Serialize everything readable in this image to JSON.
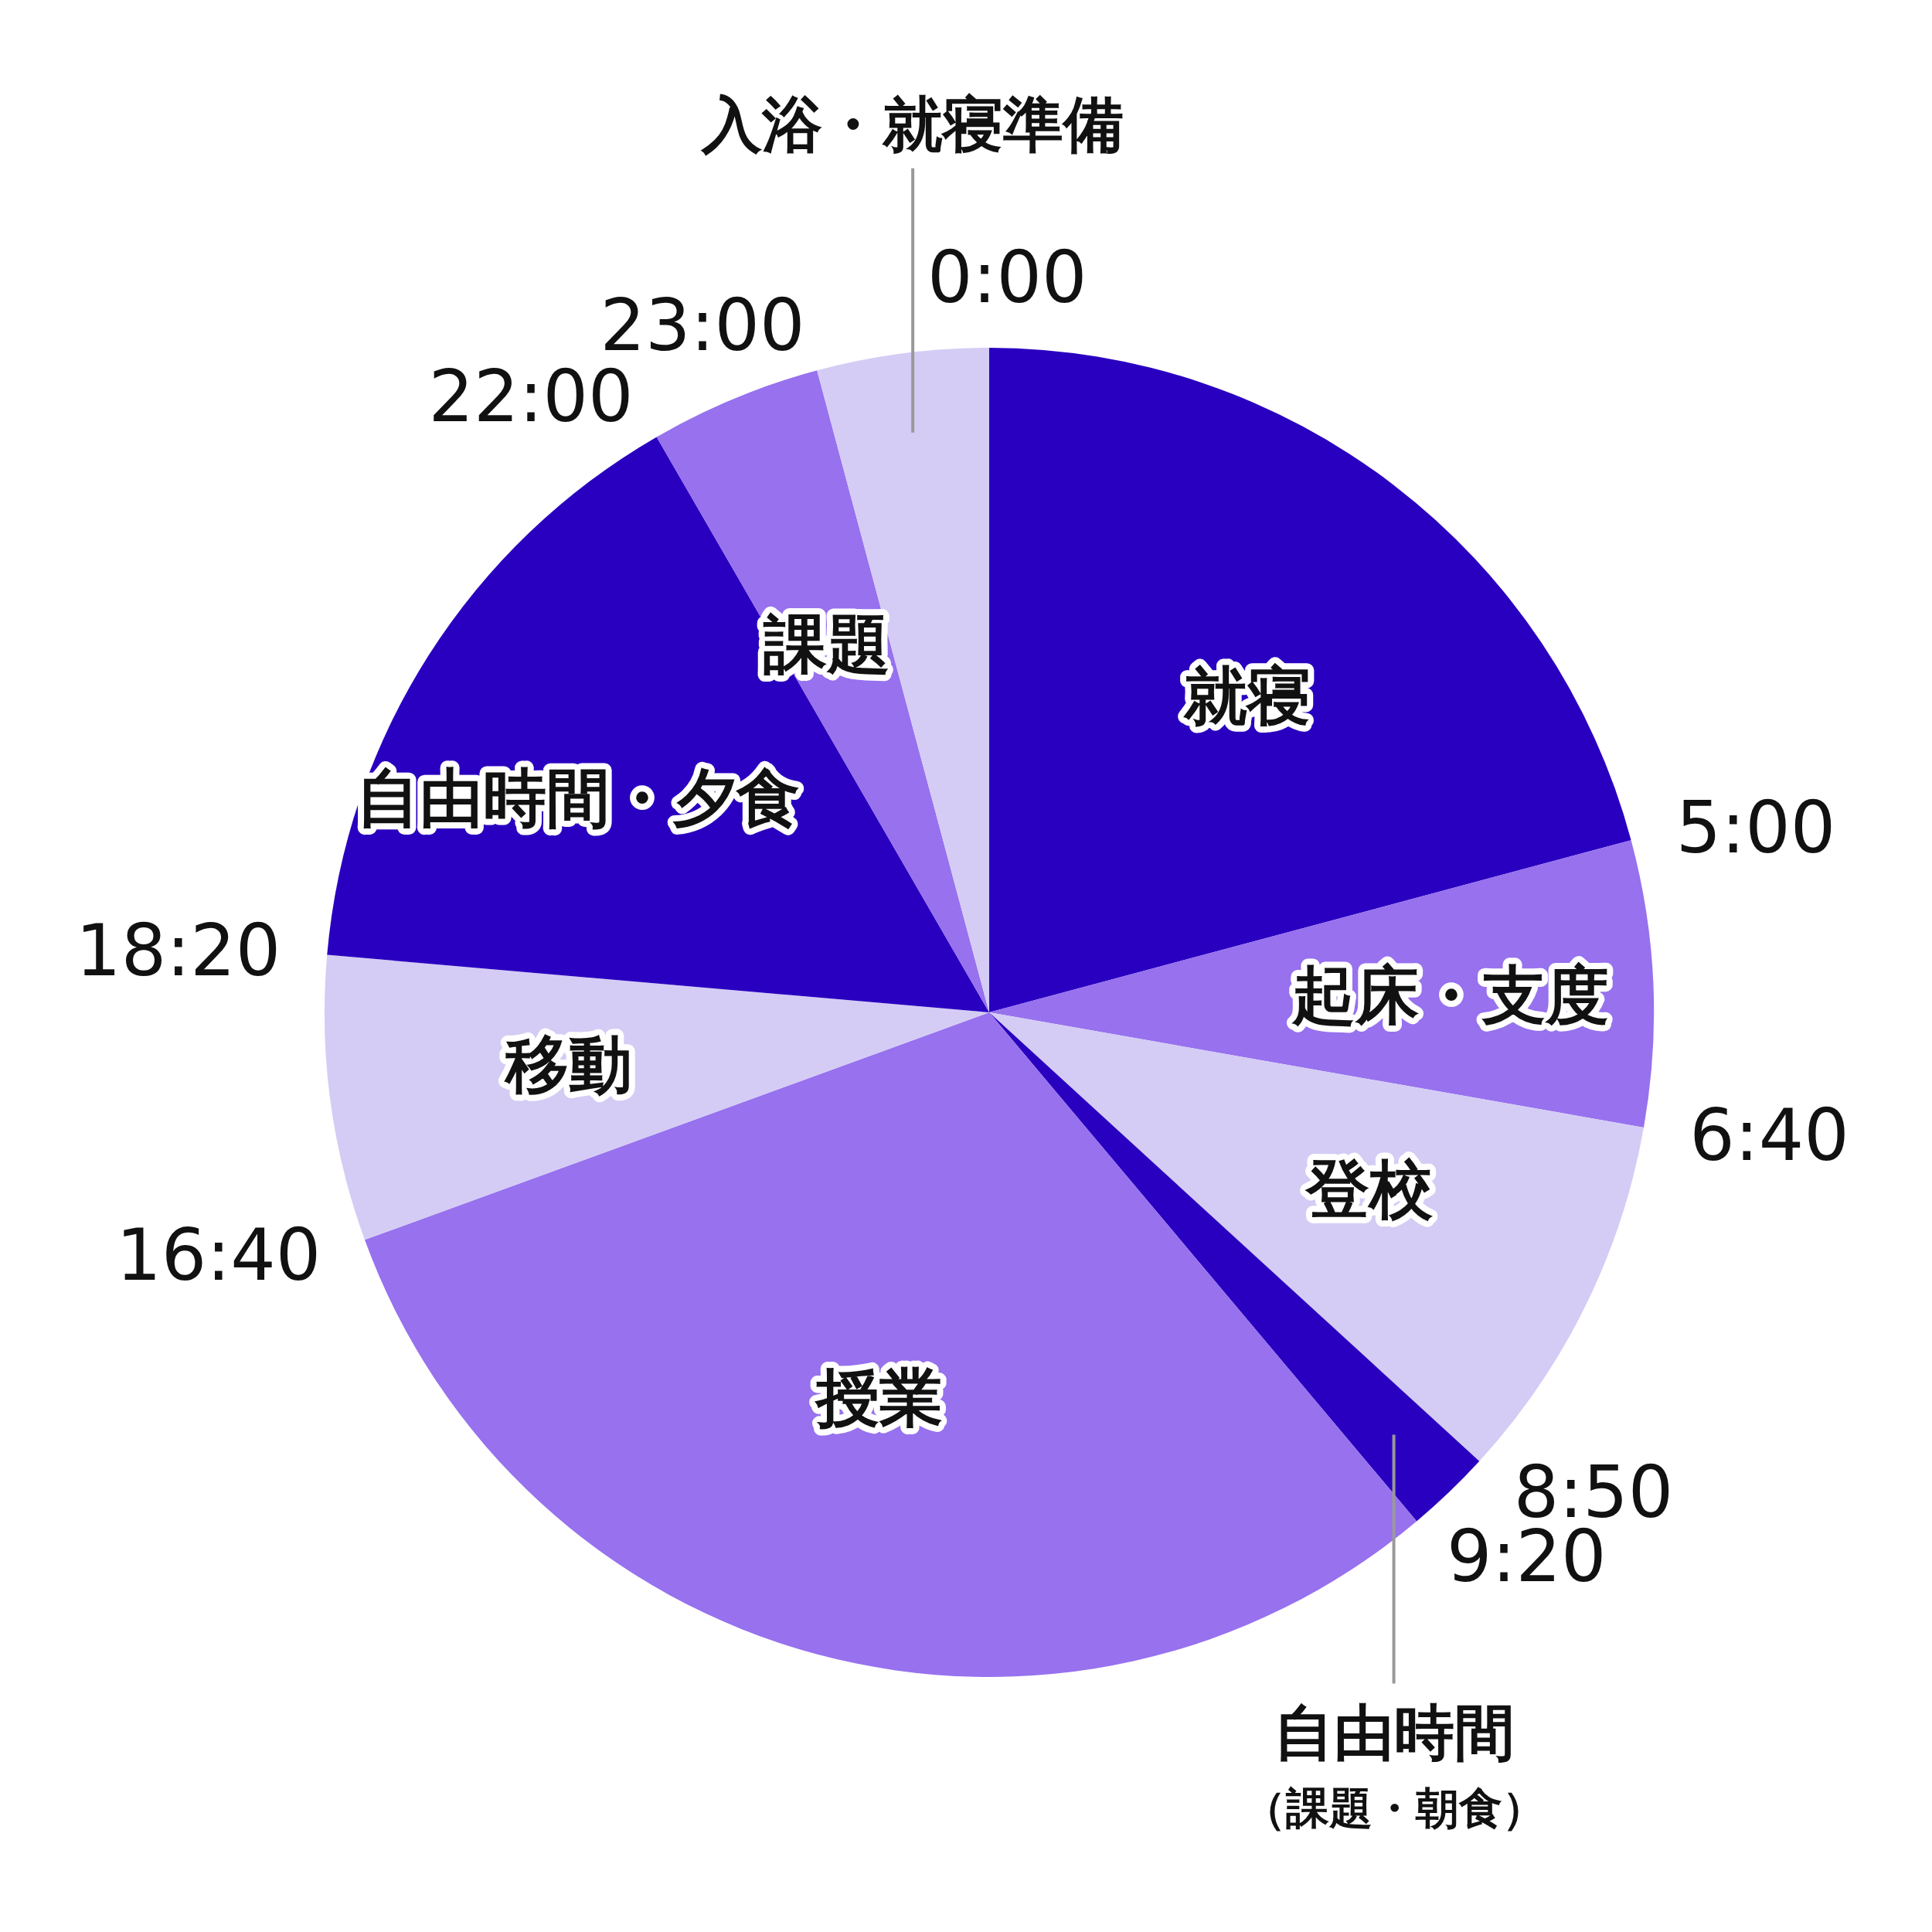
{
  "chart_data": {
    "type": "pie",
    "categories": [
      "就寝",
      "起床・支度",
      "登校",
      "自由時間（課題・朝食）",
      "授業",
      "移動",
      "自由時間・夕食",
      "課題",
      "入浴・就寝準備"
    ],
    "values": [
      20.83,
      6.94,
      9.03,
      2.08,
      30.56,
      6.94,
      15.28,
      4.17,
      4.17
    ],
    "colors": [
      "#2a00c0",
      "#9771ee",
      "#d4ccf5",
      "#2a00c0",
      "#9771ee",
      "#d4ccf5",
      "#2a00c0",
      "#9771ee",
      "#d4ccf5"
    ],
    "annotations": [
      "0:00",
      "5:00",
      "6:40",
      "8:50",
      "9:20",
      "16:40",
      "18:20",
      "22:00",
      "23:00"
    ]
  }
}
